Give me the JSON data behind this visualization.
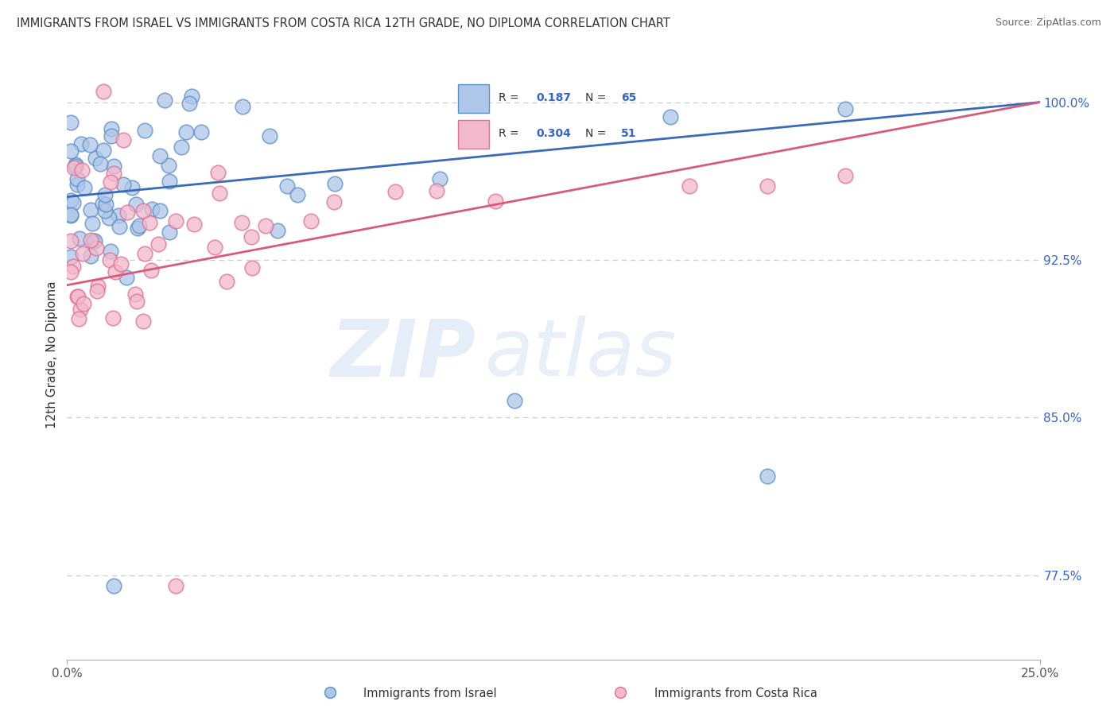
{
  "title": "IMMIGRANTS FROM ISRAEL VS IMMIGRANTS FROM COSTA RICA 12TH GRADE, NO DIPLOMA CORRELATION CHART",
  "source": "Source: ZipAtlas.com",
  "ylabel": "12th Grade, No Diploma",
  "xlim": [
    0.0,
    0.25
  ],
  "ylim": [
    0.735,
    1.025
  ],
  "y_ticks_right": [
    0.775,
    0.85,
    0.925,
    1.0
  ],
  "y_tick_labels_right": [
    "77.5%",
    "85.0%",
    "92.5%",
    "100.0%"
  ],
  "israel_color": "#aec6e8",
  "israel_edge": "#5b8fc9",
  "costa_rica_color": "#f2b8cb",
  "costa_rica_edge": "#e07090",
  "trend_israel_color": "#3a6bba",
  "trend_costa_rica_color": "#d85b7a",
  "R_israel": 0.187,
  "N_israel": 65,
  "R_costa_rica": 0.304,
  "N_costa_rica": 51,
  "legend_label_israel": "Immigrants from Israel",
  "legend_label_costa_rica": "Immigrants from Costa Rica",
  "watermark_zip": "ZIP",
  "watermark_atlas": "atlas",
  "background_color": "#ffffff",
  "grid_color": "#cccccc",
  "title_color": "#333333",
  "source_color": "#666666",
  "axis_label_color": "#333333",
  "tick_color": "#3366cc"
}
